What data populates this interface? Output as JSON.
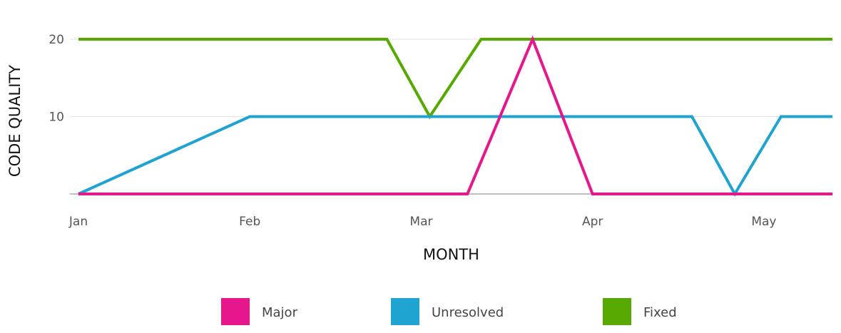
{
  "chart_data": {
    "type": "line",
    "title": "",
    "xlabel": "MONTH",
    "ylabel": "CODE QUALITY",
    "x_ticks": [
      "Jan",
      "Feb",
      "Mar",
      "Apr",
      "May"
    ],
    "x_range": [
      0,
      4.4
    ],
    "y_ticks": [
      10,
      20
    ],
    "ylim": [
      0,
      20
    ],
    "grid": true,
    "legend_position": "bottom",
    "series": [
      {
        "name": "Major",
        "color": "#e6168c",
        "x": [
          0,
          2.27,
          2.65,
          3.0,
          4.4
        ],
        "y": [
          0,
          0,
          20,
          0,
          0
        ]
      },
      {
        "name": "Unresolved",
        "color": "#1fa3d0",
        "x": [
          0,
          1.0,
          3.58,
          3.83,
          4.1,
          4.4
        ],
        "y": [
          0,
          10,
          10,
          0,
          10,
          10
        ]
      },
      {
        "name": "Fixed",
        "color": "#55a900",
        "x": [
          0,
          1.8,
          2.05,
          2.35,
          4.4
        ],
        "y": [
          20,
          20,
          10,
          20,
          20
        ]
      }
    ]
  }
}
